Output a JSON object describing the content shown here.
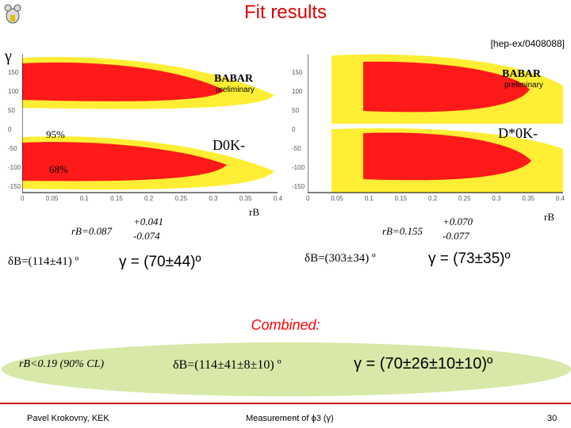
{
  "title": "Fit results",
  "reference": "[hep-ex/0408088]",
  "gamma_label": "γ",
  "plots": [
    {
      "name": "D0K",
      "experiment": "BABAR",
      "status": "preliminary",
      "channel_label": "D0K-",
      "cl_labels": [
        "95%",
        "68%"
      ],
      "xaxis": "rB",
      "xticks": [
        "0",
        "0.05",
        "0.1",
        "0.15",
        "0.2",
        "0.25",
        "0.3",
        "0.35",
        "0.4"
      ],
      "yticks": [
        "150",
        "100",
        "50",
        "0",
        "-50",
        "-100",
        "-150"
      ]
    },
    {
      "name": "Dstar0K",
      "experiment": "BABAR",
      "status": "preliminary",
      "channel_label": "D*0K-",
      "cl_labels": [],
      "xaxis": "rB",
      "xticks": [
        "0",
        "0.05",
        "0.1",
        "0.15",
        "0.2",
        "0.25",
        "0.3",
        "0.35",
        "0.4"
      ],
      "yticks": [
        "150",
        "100",
        "50",
        "0",
        "-50",
        "-100",
        "-150"
      ]
    }
  ],
  "results": {
    "left": {
      "rb_main": "rB=0.087",
      "rb_up": "+0.041",
      "rb_down": "-0.074",
      "delta": "δB=(114±41) º",
      "gamma": "γ = (70±44)º"
    },
    "right": {
      "rb_main": "rB=0.155",
      "rb_up": "+0.070",
      "rb_down": "-0.077",
      "delta": "δB=(303±34) º",
      "gamma": "γ = (73±35)º"
    }
  },
  "combined": {
    "title": "Combined:",
    "rb": "rB<0.19 (90% CL)",
    "delta": "δB=(114±41±8±10) º",
    "gamma": "γ = (70±26±10±10)º"
  },
  "footer": {
    "author": "Pavel Krokovny, KEK",
    "topic": "Measurement of ϕ3 (γ)",
    "page": "30"
  },
  "colors": {
    "title": "#e00000",
    "contour_inner": "#ff1a1a",
    "contour_outer": "#ffee33",
    "combined_bg": "#d8e8a8"
  }
}
